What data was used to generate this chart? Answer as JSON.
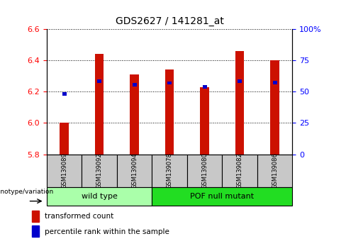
{
  "title": "GDS2627 / 141281_at",
  "samples": [
    "GSM139089",
    "GSM139092",
    "GSM139094",
    "GSM139078",
    "GSM139080",
    "GSM139082",
    "GSM139086"
  ],
  "red_values": [
    6.0,
    6.44,
    6.31,
    6.34,
    6.23,
    6.46,
    6.4
  ],
  "blue_values": [
    6.185,
    6.265,
    6.245,
    6.255,
    6.23,
    6.265,
    6.258
  ],
  "baseline": 5.8,
  "ylim_left": [
    5.8,
    6.6
  ],
  "ylim_right": [
    0,
    100
  ],
  "yticks_left": [
    5.8,
    6.0,
    6.2,
    6.4,
    6.6
  ],
  "yticks_right": [
    0,
    25,
    50,
    75,
    100
  ],
  "ytick_labels_right": [
    "0",
    "25",
    "50",
    "75",
    "100%"
  ],
  "groups": [
    {
      "label": "wild type",
      "indices": [
        0,
        1,
        2
      ],
      "color": "#aaffaa"
    },
    {
      "label": "POF null mutant",
      "indices": [
        3,
        4,
        5,
        6
      ],
      "color": "#22dd22"
    }
  ],
  "genotype_label": "genotype/variation",
  "legend_red": "transformed count",
  "legend_blue": "percentile rank within the sample",
  "red_color": "#CC1100",
  "blue_color": "#0000CC",
  "bar_width": 0.25,
  "bg_xticklabel": "#C8C8C8"
}
